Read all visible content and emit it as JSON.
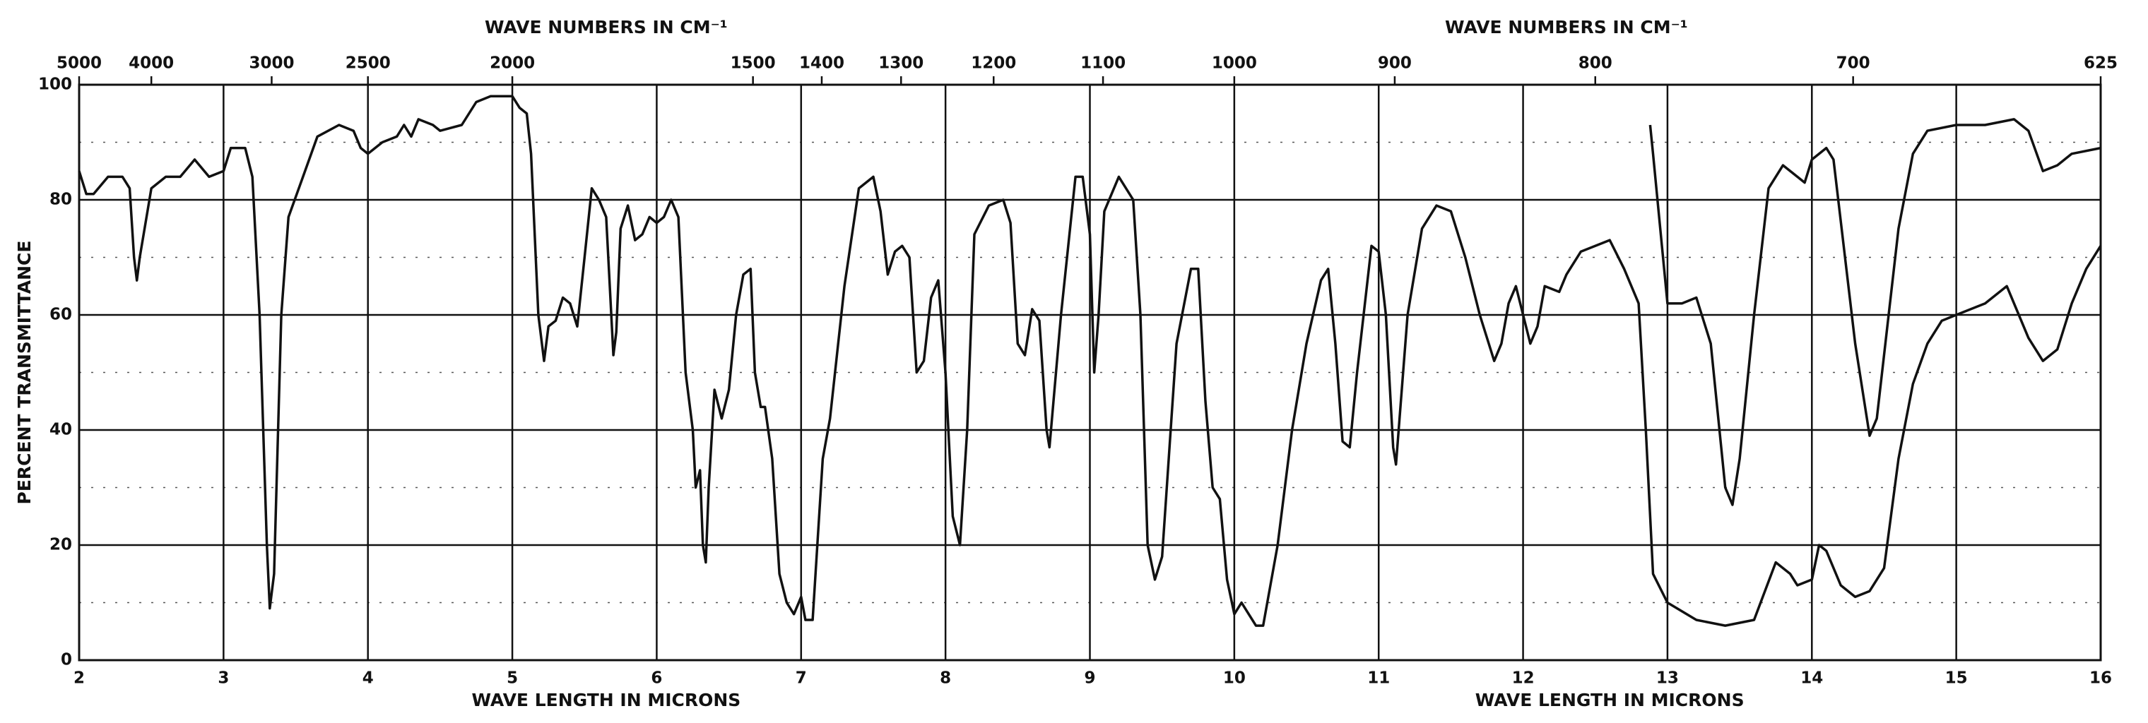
{
  "chart_data": {
    "type": "line",
    "xlabel": [
      "WAVE LENGTH IN MICRONS",
      "WAVE LENGTH IN MICRONS"
    ],
    "x2label": [
      "WAVE NUMBERS IN CM⁻¹",
      "WAVE NUMBERS IN CM⁻¹"
    ],
    "ylabel": "PERCENT TRANSMITTANCE",
    "xlim": [
      2,
      16
    ],
    "xticks": [
      2,
      3,
      4,
      5,
      6,
      7,
      8,
      9,
      10,
      11,
      12,
      13,
      14,
      15,
      16
    ],
    "x2ticks": [
      5000,
      4000,
      3000,
      2500,
      2000,
      1500,
      1400,
      1300,
      1200,
      1100,
      1000,
      900,
      800,
      700,
      625
    ],
    "ylim": [
      0,
      100
    ],
    "yticks": [
      0,
      20,
      40,
      60,
      80,
      100
    ],
    "yminorticks": [
      10,
      30,
      50,
      70,
      90
    ],
    "grid": true,
    "series": [
      {
        "color": "#111111",
        "x": [
          2.0,
          2.05,
          2.1,
          2.2,
          2.3,
          2.35,
          2.38,
          2.4,
          2.42,
          2.5,
          2.6,
          2.7,
          2.8,
          2.9,
          3.0,
          3.05,
          3.15,
          3.2,
          3.25,
          3.3,
          3.32,
          3.35,
          3.4,
          3.45,
          3.55,
          3.65,
          3.8,
          3.9,
          3.95,
          4.0,
          4.1,
          4.2,
          4.25,
          4.3,
          4.35,
          4.45,
          4.5,
          4.65,
          4.75,
          4.85,
          5.0,
          5.05,
          5.1,
          5.13,
          5.18,
          5.22,
          5.25,
          5.3,
          5.35,
          5.4,
          5.45,
          5.5,
          5.55,
          5.6,
          5.65,
          5.7,
          5.72,
          5.75,
          5.8,
          5.85,
          5.9,
          5.95,
          6.0,
          6.05,
          6.1,
          6.15,
          6.2,
          6.25,
          6.27,
          6.3,
          6.32,
          6.34,
          6.36,
          6.4,
          6.45,
          6.5,
          6.55,
          6.6,
          6.65,
          6.68,
          6.72,
          6.75,
          6.8,
          6.85,
          6.9,
          6.95,
          7.0,
          7.03,
          7.08,
          7.15,
          7.2,
          7.3,
          7.4,
          7.5,
          7.55,
          7.6,
          7.65,
          7.7,
          7.75,
          7.8,
          7.85,
          7.9,
          7.95,
          8.0,
          8.05,
          8.1,
          8.15,
          8.2,
          8.3,
          8.4,
          8.45,
          8.5,
          8.55,
          8.6,
          8.65,
          8.7,
          8.72,
          8.8,
          8.9,
          8.95,
          9.0,
          9.03,
          9.06,
          9.1,
          9.2,
          9.3,
          9.35,
          9.4,
          9.45,
          9.5,
          9.6,
          9.7,
          9.75,
          9.8,
          9.85,
          9.9,
          9.95,
          10.0,
          10.05,
          10.1,
          10.15,
          10.2,
          10.3,
          10.4,
          10.5,
          10.6,
          10.65,
          10.7,
          10.75,
          10.8,
          10.85,
          10.95,
          11.0,
          11.05,
          11.1,
          11.12,
          11.2,
          11.3,
          11.4,
          11.5,
          11.6,
          11.7,
          11.8,
          11.85,
          11.9,
          11.95,
          12.0,
          12.05,
          12.1,
          12.15,
          12.25,
          12.3,
          12.4,
          12.6,
          12.7,
          12.8,
          12.85,
          12.9,
          13.0,
          13.2,
          13.4,
          13.6,
          13.75,
          13.85,
          13.9,
          14.0,
          14.05,
          14.1,
          14.2,
          14.3,
          14.4,
          14.5,
          14.6,
          14.7,
          14.8,
          14.9,
          15.0,
          15.2,
          15.35,
          15.5,
          15.6,
          15.7,
          15.8,
          15.9,
          16.0
        ],
        "values": [
          85,
          81,
          81,
          84,
          84,
          82,
          70,
          66,
          70,
          82,
          84,
          84,
          87,
          84,
          85,
          89,
          89,
          84,
          60,
          20,
          9,
          15,
          60,
          77,
          84,
          91,
          93,
          92,
          89,
          88,
          90,
          91,
          93,
          91,
          94,
          93,
          92,
          93,
          97,
          98,
          98,
          96,
          95,
          88,
          60,
          52,
          58,
          59,
          63,
          62,
          58,
          70,
          82,
          80,
          77,
          53,
          57,
          75,
          79,
          73,
          74,
          77,
          76,
          77,
          80,
          77,
          50,
          40,
          30,
          33,
          20,
          17,
          30,
          47,
          42,
          47,
          60,
          67,
          68,
          50,
          44,
          44,
          35,
          15,
          10,
          8,
          11,
          7,
          7,
          35,
          42,
          65,
          82,
          84,
          78,
          67,
          71,
          72,
          70,
          50,
          52,
          63,
          66,
          50,
          25,
          20,
          40,
          74,
          79,
          80,
          76,
          55,
          53,
          61,
          59,
          40,
          37,
          60,
          84,
          84,
          74,
          50,
          60,
          78,
          84,
          80,
          60,
          20,
          14,
          18,
          55,
          68,
          68,
          45,
          30,
          28,
          14,
          8,
          10,
          8,
          6,
          6,
          20,
          40,
          55,
          66,
          68,
          55,
          38,
          37,
          50,
          72,
          71,
          60,
          37,
          34,
          60,
          75,
          79,
          78,
          70,
          60,
          52,
          55,
          62,
          65,
          60,
          55,
          58,
          65,
          64,
          67,
          71,
          73,
          68,
          62,
          40,
          15,
          10,
          7,
          6,
          7,
          17,
          15,
          13,
          14,
          20,
          19,
          13,
          11,
          12,
          16,
          35,
          48,
          55,
          59,
          60,
          62,
          65,
          56,
          52,
          54,
          62,
          68,
          72
        ]
      },
      {
        "color": "#111111",
        "x": [
          12.88,
          12.9,
          12.95,
          13.0,
          13.1,
          13.2,
          13.3,
          13.4,
          13.45,
          13.5,
          13.6,
          13.7,
          13.8,
          13.9,
          13.95,
          14.0,
          14.1,
          14.15,
          14.3,
          14.4,
          14.45,
          14.6,
          14.7,
          14.8,
          15.0,
          15.2,
          15.4,
          15.5,
          15.6,
          15.7,
          15.8,
          16.0
        ],
        "values": [
          93,
          88,
          75,
          62,
          62,
          63,
          55,
          30,
          27,
          35,
          60,
          82,
          86,
          84,
          83,
          87,
          89,
          87,
          55,
          39,
          42,
          75,
          88,
          92,
          93,
          93,
          94,
          92,
          85,
          86,
          88,
          89
        ]
      }
    ]
  }
}
